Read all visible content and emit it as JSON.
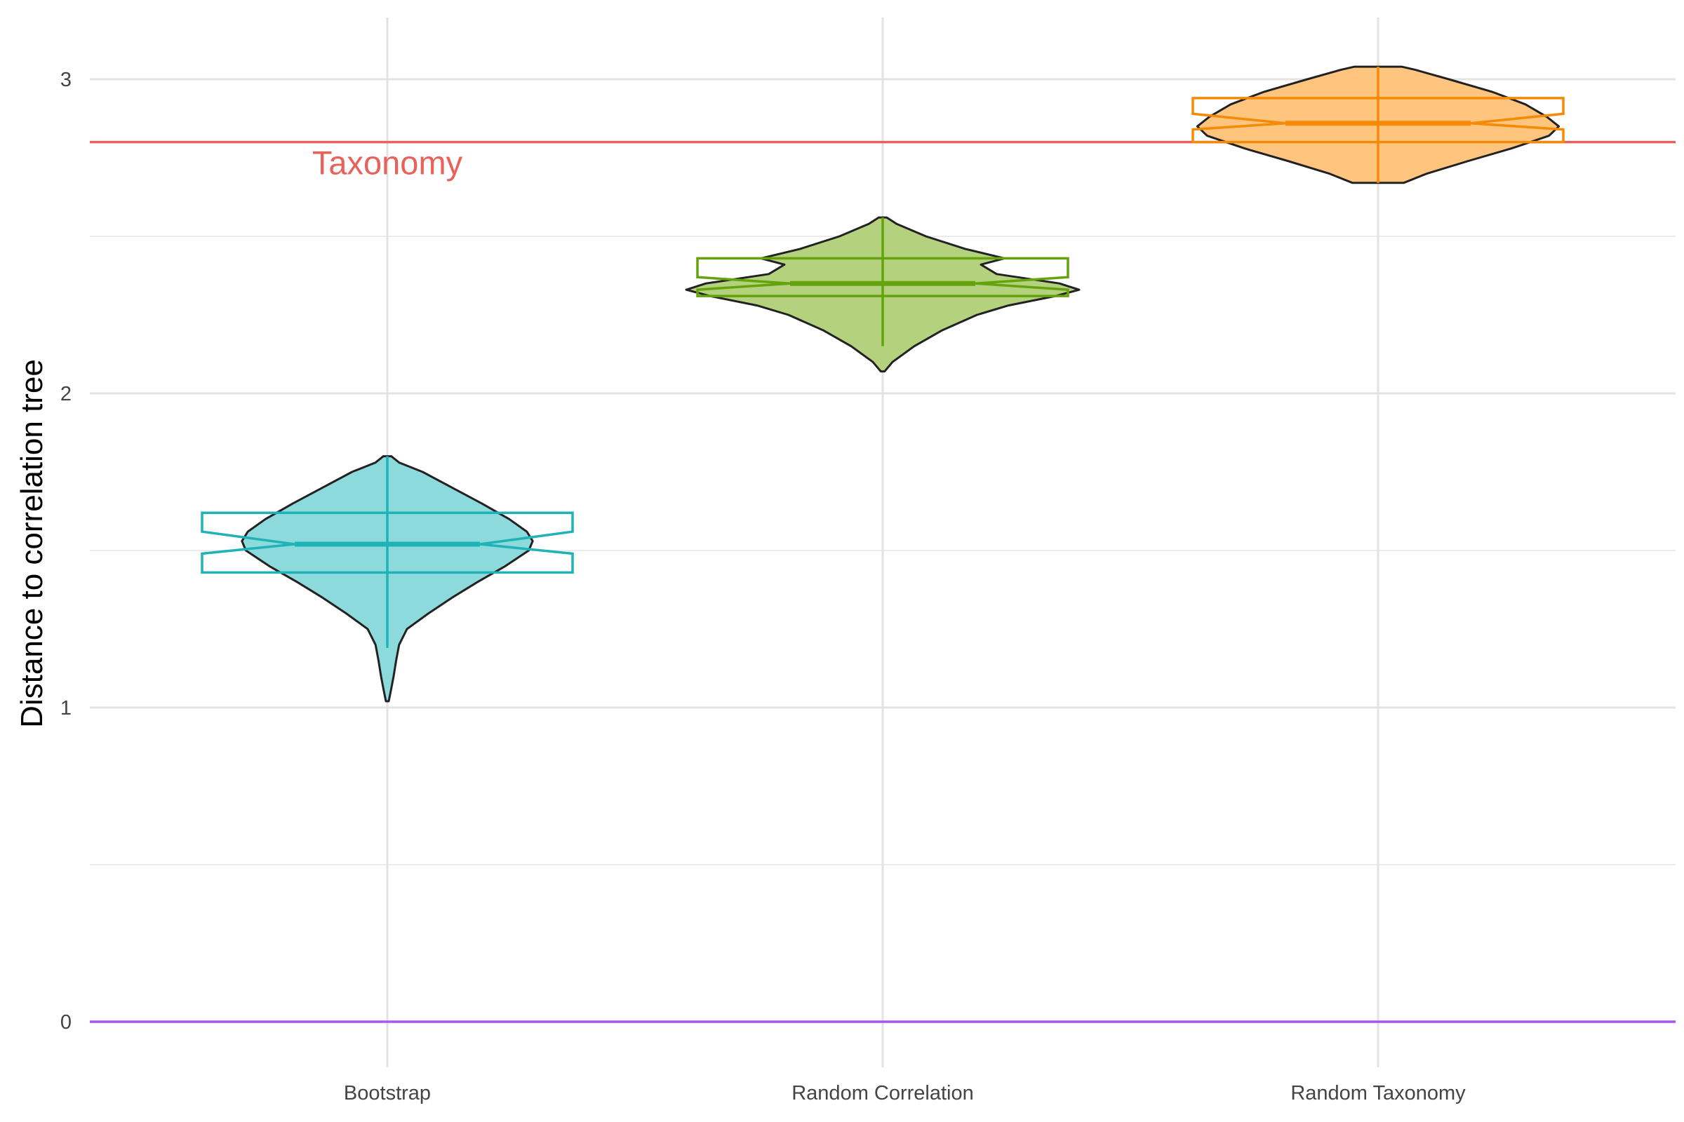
{
  "chart_data": {
    "type": "violin",
    "title": "",
    "xlabel": "",
    "ylabel": "Distance to correlation tree",
    "ylim": [
      -0.15,
      3.2
    ],
    "yticks": [
      0,
      1,
      2,
      3
    ],
    "categories": [
      "Bootstrap",
      "Random Correlation",
      "Random Taxonomy"
    ],
    "grid": true,
    "reference_lines": [
      {
        "value": 2.8,
        "label": "Taxonomy",
        "color": "#E8615A",
        "label_category": "Bootstrap"
      },
      {
        "value": 0,
        "label": "",
        "color": "#A855F7"
      }
    ],
    "series": [
      {
        "category": "Bootstrap",
        "color": "#1FB2B7",
        "fill": "#8CDADC",
        "box": {
          "min": 1.19,
          "q1": 1.43,
          "median": 1.52,
          "q3": 1.62,
          "max": 1.8,
          "notch_low": 1.49,
          "notch_high": 1.56
        },
        "violin": [
          [
            1.02,
            0.007
          ],
          [
            1.06,
            0.02
          ],
          [
            1.1,
            0.032
          ],
          [
            1.15,
            0.045
          ],
          [
            1.2,
            0.06
          ],
          [
            1.25,
            0.1
          ],
          [
            1.3,
            0.21
          ],
          [
            1.35,
            0.33
          ],
          [
            1.4,
            0.46
          ],
          [
            1.45,
            0.6
          ],
          [
            1.5,
            0.72
          ],
          [
            1.53,
            0.74
          ],
          [
            1.56,
            0.71
          ],
          [
            1.6,
            0.62
          ],
          [
            1.65,
            0.48
          ],
          [
            1.7,
            0.33
          ],
          [
            1.75,
            0.18
          ],
          [
            1.78,
            0.06
          ],
          [
            1.8,
            0.02
          ]
        ]
      },
      {
        "category": "Random Correlation",
        "color": "#65A30D",
        "fill": "#B4D27E",
        "box": {
          "min": 2.15,
          "q1": 2.31,
          "median": 2.35,
          "q3": 2.43,
          "max": 2.56,
          "notch_low": 2.33,
          "notch_high": 2.37
        },
        "violin": [
          [
            2.07,
            0.01
          ],
          [
            2.1,
            0.05
          ],
          [
            2.15,
            0.16
          ],
          [
            2.2,
            0.3
          ],
          [
            2.25,
            0.48
          ],
          [
            2.28,
            0.64
          ],
          [
            2.31,
            0.88
          ],
          [
            2.33,
            1.0
          ],
          [
            2.35,
            0.9
          ],
          [
            2.38,
            0.58
          ],
          [
            2.41,
            0.5
          ],
          [
            2.43,
            0.62
          ],
          [
            2.46,
            0.42
          ],
          [
            2.5,
            0.22
          ],
          [
            2.54,
            0.07
          ],
          [
            2.56,
            0.02
          ]
        ]
      },
      {
        "category": "Random Taxonomy",
        "color": "#F58A07",
        "fill": "#FFC57F",
        "box": {
          "min": 2.67,
          "q1": 2.8,
          "median": 2.86,
          "q3": 2.94,
          "max": 3.04,
          "notch_low": 2.84,
          "notch_high": 2.89
        },
        "violin": [
          [
            2.67,
            0.13
          ],
          [
            2.7,
            0.25
          ],
          [
            2.74,
            0.46
          ],
          [
            2.78,
            0.68
          ],
          [
            2.82,
            0.87
          ],
          [
            2.85,
            0.92
          ],
          [
            2.88,
            0.86
          ],
          [
            2.92,
            0.75
          ],
          [
            2.96,
            0.58
          ],
          [
            3.0,
            0.36
          ],
          [
            3.03,
            0.19
          ],
          [
            3.04,
            0.12
          ]
        ]
      }
    ]
  }
}
